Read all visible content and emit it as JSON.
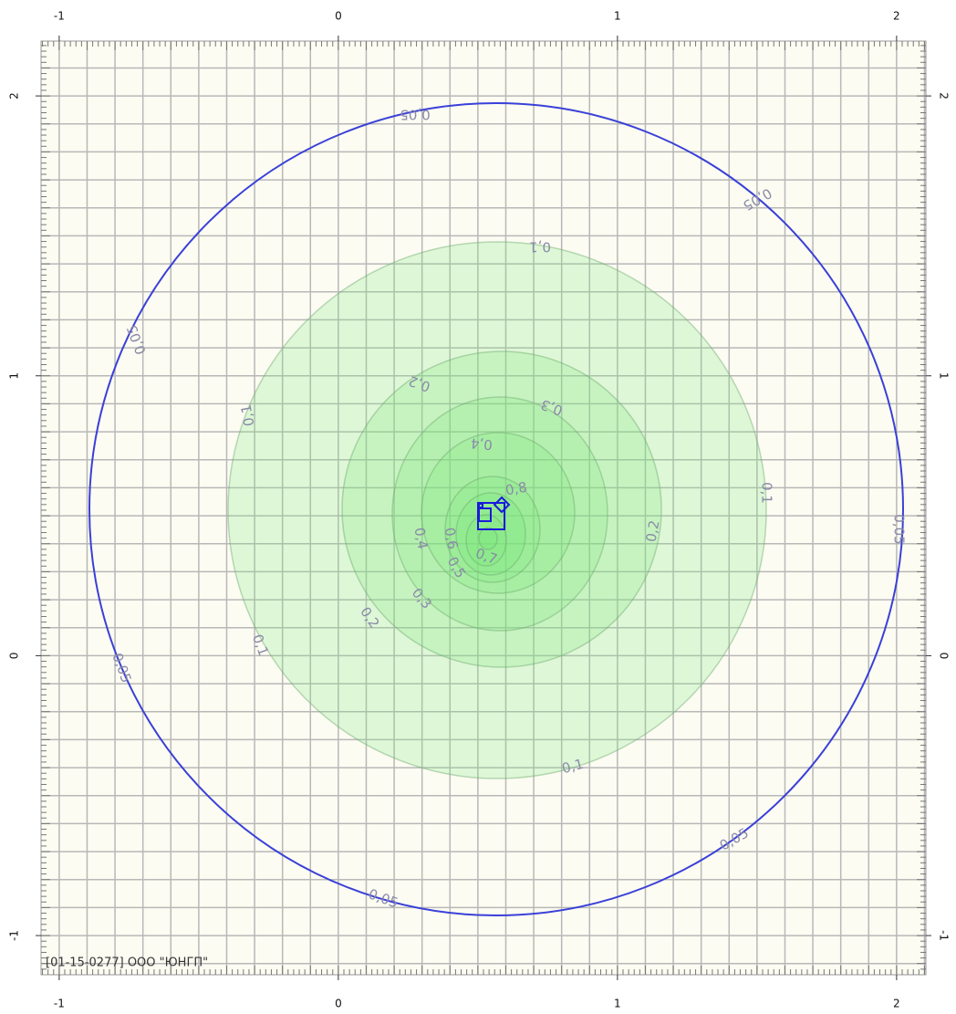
{
  "axes": {
    "xlim": [
      -1.065,
      2.105
    ],
    "ylim": [
      -1.14,
      2.196
    ],
    "xticks": [
      -1,
      0,
      1,
      2
    ],
    "yticks": [
      -1,
      0,
      1,
      2
    ]
  },
  "contours": [
    {
      "level": {
        "value": 0.05,
        "label": "0,05"
      }
    },
    {
      "level": {
        "value": 0.1,
        "label": "0,1"
      }
    },
    {
      "level": {
        "value": 0.2,
        "label": "0,2"
      }
    },
    {
      "level": {
        "value": 0.3,
        "label": "0,3"
      }
    },
    {
      "level": {
        "value": 0.4,
        "label": "0,4"
      }
    },
    {
      "level": {
        "value": 0.5,
        "label": "0,5"
      }
    },
    {
      "level": {
        "value": 0.6,
        "label": "0,6"
      }
    },
    {
      "level": {
        "value": 0.7,
        "label": "0,7"
      }
    },
    {
      "level": {
        "value": 0.8,
        "label": "0,8"
      }
    }
  ],
  "footer": "[01-15-0277] ООО \"ЮНГП\""
}
